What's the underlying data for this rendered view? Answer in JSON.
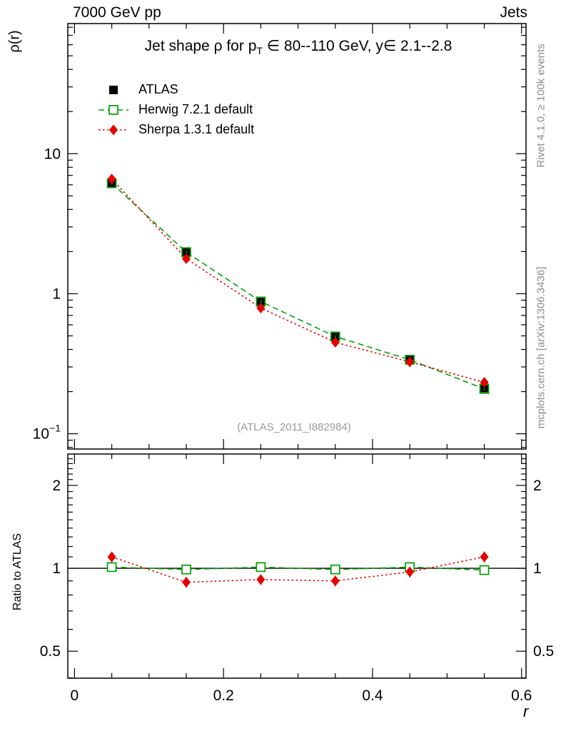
{
  "header": {
    "left": "7000 GeV pp",
    "right": "Jets"
  },
  "side_texts": {
    "right_top": "Rivet 4.1.0, ≥ 100k events",
    "right_bottom": "mcplots.cern.ch [arXiv:1306.3436]"
  },
  "watermark": "(ATLAS_2011_I882984)",
  "title_parts": {
    "pre": "Jet shape ρ for p",
    "sub": "T",
    "post": " ∈ 80--110 GeV, y∈ 2.1--2.8"
  },
  "chart_data": {
    "type": "line",
    "title": "Jet shape ρ for p_T ∈ 80--110 GeV, y∈ 2.1--2.8",
    "xlabel": "r",
    "ylabel": "ρ(r)",
    "ratio_ylabel": "Ratio to ATLAS",
    "grid": false,
    "legend_position": "top-left",
    "x_axis": {
      "min": -0.009,
      "max": 0.606,
      "major_ticks": [
        0,
        0.2,
        0.4,
        0.6
      ],
      "minor_step": 0.05
    },
    "y_axis_main": {
      "scale": "log",
      "min": 0.0778,
      "max": 85,
      "major_ticks": [
        0.1,
        1,
        10
      ]
    },
    "y_axis_ratio": {
      "scale": "log",
      "min": 0.399,
      "max": 2.6,
      "major_ticks": [
        0.5,
        1,
        2
      ]
    },
    "x": [
      0.05,
      0.15,
      0.25,
      0.35,
      0.45,
      0.55
    ],
    "series": [
      {
        "key": "atlas",
        "name": "ATLAS",
        "color": "#000000",
        "marker": "square-filled",
        "line": "none",
        "is_reference": true,
        "err_frac": 0.025,
        "values": [
          6.1,
          2.0,
          0.87,
          0.5,
          0.335,
          0.212
        ],
        "ratio": [
          1,
          1,
          1,
          1,
          1,
          1
        ]
      },
      {
        "key": "herwig",
        "name": "Herwig 7.2.1 default",
        "color": "#00a000",
        "marker": "square-open",
        "line": "dashed",
        "is_reference": false,
        "err_frac": 0.02,
        "values": [
          6.15,
          1.98,
          0.88,
          0.495,
          0.338,
          0.209
        ],
        "ratio": [
          1.01,
          0.99,
          1.01,
          0.99,
          1.01,
          0.985
        ]
      },
      {
        "key": "sherpa",
        "name": "Sherpa 1.3.1 default",
        "color": "#e60000",
        "marker": "diamond-filled",
        "line": "dotted",
        "is_reference": false,
        "err_frac": 0.045,
        "values": [
          6.6,
          1.78,
          0.79,
          0.45,
          0.326,
          0.233
        ],
        "ratio": [
          1.1,
          0.89,
          0.91,
          0.9,
          0.97,
          1.1
        ]
      }
    ]
  }
}
